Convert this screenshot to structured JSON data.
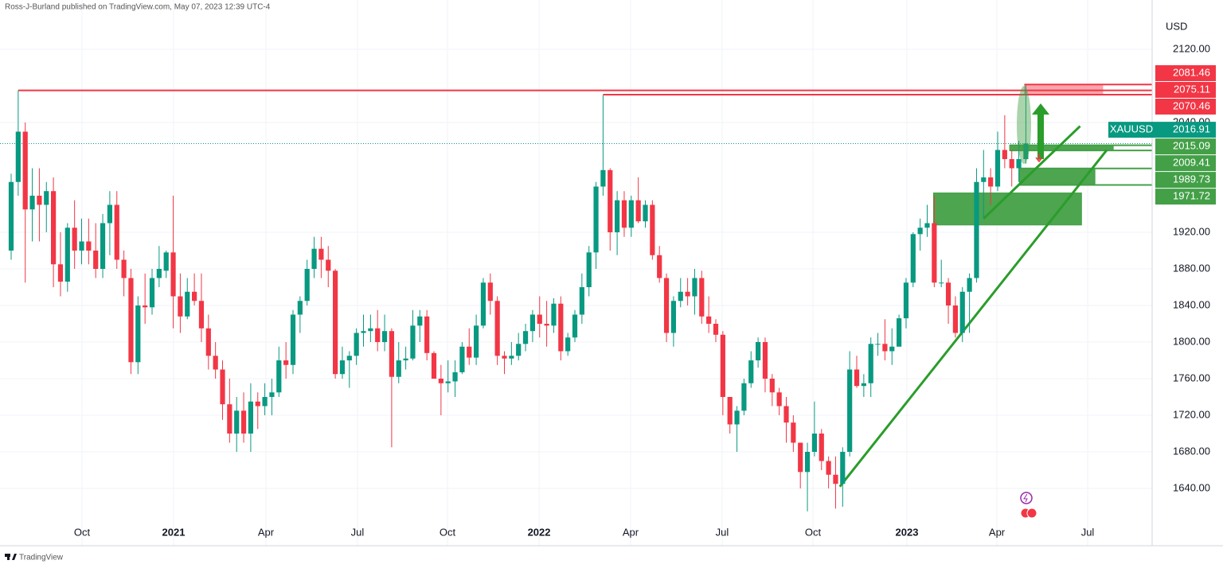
{
  "header": {
    "byline": "Ross-J-Burland published on TradingView.com, May 07, 2023 12:39 UTC-4"
  },
  "chart_data": {
    "type": "candlestick",
    "symbol": "XAUUSD",
    "currency": "USD",
    "last_price": 2016.91,
    "up_color": "#089981",
    "down_color": "#f23645",
    "grid": true,
    "x": [
      0,
      1,
      2,
      3,
      4,
      5,
      6,
      7,
      8,
      9,
      10,
      11,
      12,
      13,
      14,
      15,
      16,
      17,
      18,
      19,
      20,
      21,
      22,
      23,
      24,
      25,
      26,
      27,
      28,
      29,
      30,
      31,
      32,
      33,
      34,
      35,
      36,
      37,
      38,
      39,
      40,
      41,
      42,
      43,
      44,
      45,
      46,
      47,
      48,
      49,
      50,
      51,
      52,
      53,
      54,
      55,
      56,
      57,
      58,
      59,
      60,
      61,
      62,
      63,
      64,
      65,
      66,
      67,
      68,
      69,
      70,
      71,
      72,
      73,
      74,
      75,
      76,
      77,
      78,
      79,
      80,
      81,
      82,
      83,
      84,
      85,
      86,
      87,
      88,
      89,
      90,
      91,
      92,
      93,
      94,
      95,
      96,
      97,
      98,
      99,
      100,
      101,
      102,
      103,
      104,
      105,
      106,
      107,
      108,
      109,
      110,
      111,
      112,
      113,
      114,
      115,
      116,
      117,
      118,
      119,
      120,
      121,
      122,
      123,
      124,
      125,
      126,
      127,
      128,
      129,
      130,
      131,
      132,
      133,
      134,
      135,
      136,
      137,
      138,
      139,
      140,
      141,
      142,
      143,
      144
    ],
    "open": [
      1900,
      1975,
      2030,
      1945,
      1960,
      1950,
      1965,
      1885,
      1866,
      1925,
      1900,
      1910,
      1900,
      1880,
      1930,
      1950,
      1890,
      1870,
      1778,
      1840,
      1838,
      1870,
      1878,
      1898,
      1850,
      1828,
      1855,
      1845,
      1815,
      1785,
      1770,
      1732,
      1700,
      1725,
      1700,
      1735,
      1730,
      1740,
      1745,
      1780,
      1775,
      1830,
      1845,
      1880,
      1902,
      1890,
      1878,
      1765,
      1780,
      1785,
      1810,
      1812,
      1815,
      1800,
      1812,
      1762,
      1780,
      1782,
      1818,
      1828,
      1788,
      1760,
      1755,
      1757,
      1767,
      1795,
      1783,
      1818,
      1865,
      1845,
      1785,
      1782,
      1785,
      1798,
      1812,
      1830,
      1820,
      1818,
      1842,
      1790,
      1805,
      1830,
      1860,
      1898,
      1970,
      1988,
      1920,
      1955,
      1925,
      1955,
      1932,
      1950,
      1895,
      1870,
      1810,
      1845,
      1855,
      1850,
      1870,
      1828,
      1820,
      1808,
      1740,
      1710,
      1725,
      1755,
      1780,
      1800,
      1760,
      1745,
      1730,
      1712,
      1690,
      1658,
      1680,
      1700,
      1670,
      1655,
      1645,
      1680,
      1770,
      1752,
      1755,
      1798,
      1798,
      1790,
      1795,
      1826,
      1865,
      1918,
      1925,
      1930,
      1865,
      1865,
      1840,
      1810,
      1855,
      1870,
      1975,
      1980,
      1970,
      2010,
      2000,
      1990,
      2000
    ],
    "high": [
      1984,
      2075,
      2040,
      1990,
      1990,
      1975,
      1980,
      1920,
      1930,
      1955,
      1935,
      1935,
      1930,
      1940,
      1965,
      1965,
      1900,
      1880,
      1850,
      1875,
      1880,
      1905,
      1900,
      1960,
      1875,
      1870,
      1875,
      1875,
      1830,
      1800,
      1780,
      1760,
      1740,
      1745,
      1755,
      1745,
      1755,
      1760,
      1795,
      1800,
      1835,
      1850,
      1890,
      1915,
      1915,
      1905,
      1880,
      1795,
      1790,
      1815,
      1830,
      1830,
      1835,
      1830,
      1815,
      1800,
      1795,
      1835,
      1835,
      1835,
      1790,
      1775,
      1780,
      1780,
      1800,
      1815,
      1830,
      1870,
      1875,
      1850,
      1790,
      1800,
      1810,
      1820,
      1835,
      1850,
      1845,
      1848,
      1850,
      1810,
      1835,
      1875,
      1905,
      1975,
      2070,
      1990,
      1965,
      1965,
      1960,
      1980,
      1955,
      1955,
      1905,
      1875,
      1850,
      1870,
      1870,
      1880,
      1878,
      1850,
      1825,
      1812,
      1740,
      1730,
      1760,
      1790,
      1805,
      1805,
      1765,
      1750,
      1740,
      1720,
      1690,
      1690,
      1735,
      1705,
      1675,
      1675,
      1685,
      1790,
      1785,
      1765,
      1805,
      1810,
      1825,
      1815,
      1830,
      1870,
      1920,
      1935,
      1950,
      1960,
      1890,
      1870,
      1850,
      1860,
      1875,
      1990,
      2010,
      1990,
      2030,
      2048,
      2010,
      2020,
      2081
    ],
    "low": [
      1890,
      1960,
      1865,
      1910,
      1910,
      1920,
      1860,
      1850,
      1855,
      1880,
      1885,
      1885,
      1870,
      1870,
      1895,
      1880,
      1850,
      1765,
      1765,
      1820,
      1830,
      1860,
      1870,
      1815,
      1810,
      1825,
      1840,
      1800,
      1770,
      1760,
      1715,
      1690,
      1680,
      1690,
      1680,
      1705,
      1720,
      1720,
      1740,
      1760,
      1765,
      1810,
      1840,
      1870,
      1870,
      1860,
      1760,
      1760,
      1750,
      1775,
      1795,
      1800,
      1790,
      1790,
      1685,
      1755,
      1770,
      1780,
      1800,
      1780,
      1760,
      1720,
      1745,
      1740,
      1765,
      1775,
      1775,
      1815,
      1830,
      1775,
      1765,
      1775,
      1780,
      1790,
      1800,
      1805,
      1795,
      1810,
      1780,
      1785,
      1800,
      1820,
      1850,
      1880,
      1960,
      1900,
      1895,
      1915,
      1915,
      1930,
      1925,
      1890,
      1865,
      1800,
      1795,
      1838,
      1840,
      1830,
      1820,
      1810,
      1800,
      1720,
      1700,
      1680,
      1720,
      1750,
      1772,
      1745,
      1730,
      1720,
      1690,
      1680,
      1640,
      1615,
      1675,
      1660,
      1640,
      1618,
      1620,
      1675,
      1750,
      1740,
      1740,
      1785,
      1780,
      1775,
      1795,
      1815,
      1860,
      1900,
      1915,
      1860,
      1860,
      1820,
      1805,
      1800,
      1810,
      1865,
      1935,
      1950,
      1965,
      1990,
      1970,
      1975,
      1995
    ],
    "close": [
      1975,
      2030,
      1945,
      1960,
      1950,
      1965,
      1885,
      1866,
      1925,
      1900,
      1910,
      1900,
      1880,
      1930,
      1950,
      1890,
      1870,
      1778,
      1840,
      1838,
      1870,
      1880,
      1898,
      1850,
      1828,
      1855,
      1845,
      1815,
      1785,
      1770,
      1732,
      1700,
      1725,
      1700,
      1735,
      1730,
      1740,
      1745,
      1780,
      1775,
      1830,
      1845,
      1880,
      1902,
      1890,
      1878,
      1765,
      1780,
      1785,
      1810,
      1812,
      1815,
      1800,
      1812,
      1762,
      1780,
      1782,
      1818,
      1828,
      1788,
      1760,
      1755,
      1757,
      1767,
      1795,
      1783,
      1818,
      1865,
      1845,
      1785,
      1782,
      1785,
      1798,
      1812,
      1830,
      1820,
      1818,
      1842,
      1790,
      1805,
      1830,
      1860,
      1898,
      1970,
      1988,
      1920,
      1955,
      1925,
      1955,
      1932,
      1950,
      1895,
      1870,
      1810,
      1845,
      1855,
      1850,
      1870,
      1828,
      1820,
      1808,
      1740,
      1710,
      1725,
      1755,
      1780,
      1800,
      1760,
      1745,
      1730,
      1712,
      1690,
      1658,
      1680,
      1700,
      1670,
      1655,
      1645,
      1680,
      1770,
      1752,
      1755,
      1798,
      1798,
      1790,
      1795,
      1826,
      1865,
      1918,
      1925,
      1930,
      1865,
      1865,
      1840,
      1810,
      1855,
      1870,
      1975,
      1980,
      1970,
      2010,
      2000,
      1990,
      2000,
      2017
    ],
    "xlim": [
      -1.582,
      161.92
    ],
    "xticks": [
      {
        "value": 10.06,
        "label": "Oct"
      },
      {
        "value": 23.05,
        "label": "2021"
      },
      {
        "value": 36.16,
        "label": "Apr"
      },
      {
        "value": 49.15,
        "label": "Jul"
      },
      {
        "value": 61.92,
        "label": "Oct"
      },
      {
        "value": 74.92,
        "label": "2022"
      },
      {
        "value": 87.91,
        "label": "Apr"
      },
      {
        "value": 100.9,
        "label": "Jul"
      },
      {
        "value": 113.79,
        "label": "Oct"
      },
      {
        "value": 127.12,
        "label": "2023"
      },
      {
        "value": 139.89,
        "label": "Apr"
      },
      {
        "value": 152.77,
        "label": "Jul"
      }
    ],
    "ylim": [
      1577.4,
      2173.9
    ],
    "yticks": [
      {
        "value": 1640,
        "label": "1640.00"
      },
      {
        "value": 1680,
        "label": "1680.00"
      },
      {
        "value": 1720,
        "label": "1720.00"
      },
      {
        "value": 1760,
        "label": "1760.00"
      },
      {
        "value": 1800,
        "label": "1800.00"
      },
      {
        "value": 1840,
        "label": "1840.00"
      },
      {
        "value": 1880,
        "label": "1880.00"
      },
      {
        "value": 1920,
        "label": "1920.00"
      },
      {
        "value": 2040,
        "label": "2040.00"
      },
      {
        "value": 2120,
        "label": "2120.00"
      }
    ],
    "levels": [
      {
        "value": 2081.46,
        "start": 143.8,
        "color": "#f23645"
      },
      {
        "value": 2075.11,
        "start": 1,
        "color": "#f23645"
      },
      {
        "value": 2070.46,
        "start": 84,
        "color": "#f23645"
      },
      {
        "value": 2015.09,
        "start": 141.7,
        "color": "#43a047"
      },
      {
        "value": 2009.41,
        "start": 141.7,
        "color": "#43a047"
      },
      {
        "value": 1989.73,
        "start": 143.1,
        "color": "#43a047"
      },
      {
        "value": 1971.72,
        "start": 143.1,
        "color": "#43a047"
      }
    ],
    "zones": [
      {
        "x": [
          143.8,
          154.9
        ],
        "y": [
          2070.46,
          2081.46
        ],
        "color": "#f7a1a9"
      },
      {
        "x": [
          141.7,
          156.4
        ],
        "y": [
          2009.41,
          2015.09
        ],
        "color": "#43a047"
      },
      {
        "x": [
          143.1,
          153.8
        ],
        "y": [
          1971.72,
          1989.73
        ],
        "color": "#43a047"
      },
      {
        "x": [
          130.9,
          151.9
        ],
        "y": [
          1928,
          1963
        ],
        "color": "#43a047"
      }
    ],
    "trendlines": [
      {
        "x": [
          117.6,
          155.5
        ],
        "y": [
          1642,
          2010
        ],
        "color": "#2a9d2a"
      },
      {
        "x": [
          138,
          151.7
        ],
        "y": [
          1935,
          2036
        ],
        "color": "#2a9d2a"
      }
    ]
  },
  "footer": {
    "brand": "TradingView"
  }
}
